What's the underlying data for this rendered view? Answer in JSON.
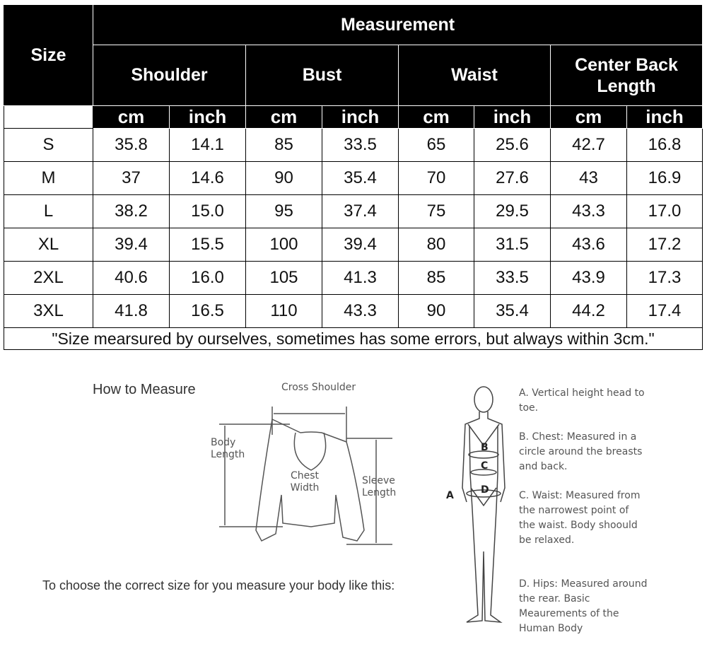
{
  "table": {
    "size_header": "Size",
    "measurement_header": "Measurement",
    "groups": [
      "Shoulder",
      "Bust",
      "Waist",
      "Center Back Length"
    ],
    "units": [
      "cm",
      "inch",
      "cm",
      "inch",
      "cm",
      "inch",
      "cm",
      "inch"
    ],
    "rows": [
      [
        "S",
        "35.8",
        "14.1",
        "85",
        "33.5",
        "65",
        "25.6",
        "42.7",
        "16.8"
      ],
      [
        "M",
        "37",
        "14.6",
        "90",
        "35.4",
        "70",
        "27.6",
        "43",
        "16.9"
      ],
      [
        "L",
        "38.2",
        "15.0",
        "95",
        "37.4",
        "75",
        "29.5",
        "43.3",
        "17.0"
      ],
      [
        "XL",
        "39.4",
        "15.5",
        "100",
        "39.4",
        "80",
        "31.5",
        "43.6",
        "17.2"
      ],
      [
        "2XL",
        "40.6",
        "16.0",
        "105",
        "41.3",
        "85",
        "33.5",
        "43.9",
        "17.3"
      ],
      [
        "3XL",
        "41.8",
        "16.5",
        "110",
        "43.3",
        "90",
        "35.4",
        "44.2",
        "17.4"
      ]
    ],
    "note": "\"Size mearsured by ourselves, sometimes has some errors, but always within 3cm.\""
  },
  "how_to": {
    "title": "How to Measure",
    "garment_labels": {
      "cross_shoulder": "Cross Shoulder",
      "body_length": "Body Length",
      "chest_width": "Chest Width",
      "sleeve_length": "Sleeve Length"
    },
    "instruction": "To choose the correct size for you measure your body like this:",
    "body_markers": [
      "A",
      "B",
      "C",
      "D"
    ],
    "body_notes": [
      "A. Vertical height head to toe.",
      "B. Chest: Measured in a circle around the breasts and back.",
      "C. Waist: Measured from the narrowest point of the waist. Body shoould be relaxed.",
      "D. Hips: Measured around the rear. Basic Meaurements of the Human Body"
    ]
  }
}
